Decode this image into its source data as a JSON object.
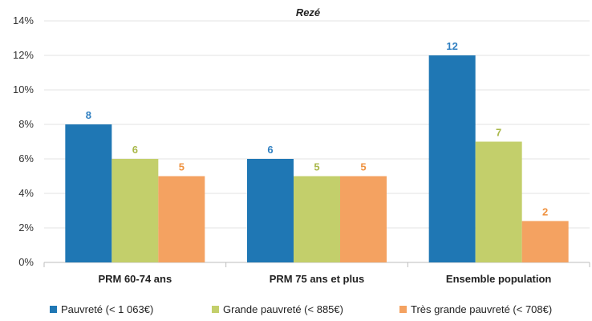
{
  "chart_data": {
    "type": "bar",
    "title": "Rezé",
    "xlabel": "",
    "ylabel": "",
    "ylim": [
      0,
      14
    ],
    "yticks": [
      "0%",
      "2%",
      "4%",
      "6%",
      "8%",
      "10%",
      "12%",
      "14%"
    ],
    "ytick_values": [
      0,
      2,
      4,
      6,
      8,
      10,
      12,
      14
    ],
    "categories": [
      "PRM 60-74 ans",
      "PRM 75 ans et plus",
      "Ensemble population"
    ],
    "series": [
      {
        "name": "Pauvreté (< 1 063€)",
        "values": [
          8,
          6,
          12
        ],
        "labels": [
          "8",
          "6",
          "12"
        ],
        "color": "#1f77b4",
        "label_color": "#2f7fc1"
      },
      {
        "name": "Grande pauvreté (< 885€)",
        "values": [
          6,
          5,
          7
        ],
        "labels": [
          "6",
          "5",
          "7"
        ],
        "color": "#c3cf6b",
        "label_color": "#a9b84a"
      },
      {
        "name": "Très grande pauvreté (< 708€)",
        "values": [
          5,
          5,
          2.4
        ],
        "labels": [
          "5",
          "5",
          "2"
        ],
        "color": "#f4a261",
        "label_color": "#ef9240"
      }
    ],
    "grid": true,
    "legend_position": "bottom"
  }
}
